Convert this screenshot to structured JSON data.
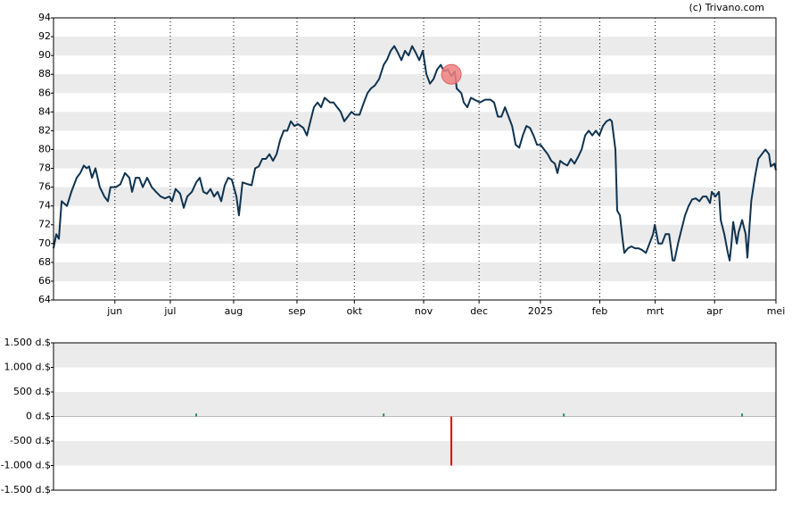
{
  "chart_data": [
    {
      "type": "line",
      "title": "(c) Trivano.com",
      "x": [
        0,
        1.4,
        2.7,
        4.1,
        6.8,
        9.0,
        11.7,
        13.5,
        15.3,
        16.7,
        18.0,
        19.4,
        21.2,
        23.4,
        25.7,
        27.5,
        28.8,
        31.5,
        33.8,
        36.1,
        38.3,
        39.7,
        41.5,
        43.3,
        45.1,
        47.3,
        49.6,
        51.8,
        54.1,
        56.3,
        58.6,
        59.9,
        61.7,
        64.0,
        65.8,
        67.6,
        69.9,
        72.1,
        73.9,
        75.7,
        77.5,
        79.3,
        81.1,
        82.9,
        84.7,
        86.5,
        88.3,
        90.1,
        92.4,
        93.7,
        95.5,
        98.3,
        100.1,
        101.9,
        103.7,
        105.5,
        107.3,
        109.1,
        110.9,
        112.7,
        114.5,
        116.3,
        118.1,
        119.9,
        121.7,
        123.5,
        126.2,
        128.0,
        129.8,
        131.6,
        133.4,
        135.2,
        137.0,
        139.7,
        141.5,
        143.3,
        145.1,
        146.9,
        148.7,
        150.5,
        152.3,
        154.6,
        156.8,
        158.6,
        160.4,
        162.3,
        164.5,
        166.8,
        168.6,
        170.4,
        172.2,
        174.0,
        175.8,
        177.6,
        179.4,
        181.2,
        183.0,
        184.8,
        186.6,
        188.4,
        190.2,
        192.0,
        193.8,
        195.6,
        197.4,
        199.2,
        201.0,
        202.8,
        203.7,
        206.0,
        207.3,
        209.1,
        210.9,
        212.7,
        215.4,
        218.1,
        220.8,
        222.6,
        224.5,
        226.3,
        228.1,
        229.9,
        231.7,
        233.5,
        235.3,
        237.1,
        238.9,
        240.7,
        242.5,
        244.3,
        246.1,
        247.9,
        249.7,
        251.5,
        253.3,
        254.6,
        256.0,
        257.8,
        259.6,
        261.4,
        263.2,
        265.0,
        266.8,
        268.6,
        270.4,
        272.2,
        274.0,
        275.8,
        277.6,
        279.4,
        281.2,
        282.1,
        283.9,
        284.8,
        286.2,
        287.5,
        288.4,
        290.2,
        292.0,
        293.8,
        295.6,
        297.5,
        299.3,
        301.1,
        302.9,
        303.8,
        305.6,
        307.4,
        309.2,
        311.0,
        312.8,
        313.7,
        315.5,
        317.3,
        319.1,
        320.9,
        322.7,
        324.5,
        326.3,
        328.1,
        329.9,
        331.7,
        332.6,
        334.4,
        336.2,
        337.1,
        338.9,
        340.7,
        341.6,
        342.5,
        343.4,
        345.2,
        346.1,
        347.9,
        349.7,
        350.6,
        352.5,
        354.3,
        356.1,
        357.9,
        359.7,
        361.5,
        362.4,
        364.2,
        365
      ],
      "series": [
        {
          "color": "#0f3350",
          "values": [
            69.5,
            71,
            70.5,
            74.5,
            74,
            75.5,
            77,
            77.5,
            78.3,
            78,
            78.2,
            77,
            78,
            76,
            75,
            74.5,
            76,
            76,
            76.3,
            77.5,
            77,
            75.5,
            77,
            77,
            76,
            77,
            76,
            75.5,
            75,
            74.8,
            75,
            74.5,
            75.8,
            75.3,
            73.8,
            75,
            75.5,
            76.5,
            77,
            75.5,
            75.3,
            75.8,
            75,
            75.5,
            74.5,
            76.2,
            77,
            76.8,
            75,
            73,
            76.5,
            76.3,
            76.2,
            78,
            78.2,
            79,
            79,
            79.5,
            78.8,
            79.5,
            81,
            82,
            82,
            83,
            82.5,
            82.7,
            82.3,
            81.5,
            83,
            84.5,
            85,
            84.5,
            85.5,
            85,
            85,
            84.5,
            84,
            83,
            83.5,
            84,
            83.7,
            83.7,
            85,
            86,
            86.5,
            86.8,
            87.5,
            89,
            89.6,
            90.5,
            91,
            90.3,
            89.5,
            90.5,
            90,
            91,
            90.3,
            89.5,
            90.5,
            88,
            87,
            87.5,
            88.5,
            89,
            88.3,
            88.5,
            87.8,
            88.3,
            86.5,
            86,
            85,
            84.5,
            85.5,
            85.3,
            85,
            85.3,
            85.3,
            85,
            83.5,
            83.5,
            84.5,
            83.5,
            82.5,
            80.5,
            80.2,
            81.5,
            82.5,
            82.3,
            81.5,
            80.5,
            80.5,
            80,
            79.5,
            78.8,
            78.5,
            77.5,
            78.8,
            78.5,
            78.3,
            79,
            78.5,
            79.2,
            80,
            81.5,
            82,
            81.5,
            82,
            81.5,
            82.5,
            83,
            83.2,
            83,
            80,
            73.5,
            73,
            70.5,
            69,
            69.5,
            69.7,
            69.5,
            69.5,
            69.3,
            69,
            70,
            71,
            72,
            70,
            70,
            71,
            71,
            68.2,
            68.2,
            70,
            71.5,
            73,
            74,
            74.7,
            74.8,
            74.5,
            75,
            75,
            74.3,
            75.5,
            75,
            75.5,
            72.5,
            71,
            69,
            68.2,
            70,
            72.3,
            70,
            71.2,
            72.5,
            71,
            68.5,
            74.5,
            77,
            79,
            79.5,
            80,
            79.5,
            78.2,
            78.5,
            77.8
          ]
        }
      ],
      "highlight": {
        "x": 201.0,
        "value": 88,
        "color": "#f08080"
      },
      "xlim": [
        0,
        365
      ],
      "xticks": [
        {
          "value": 31,
          "label": "jun"
        },
        {
          "value": 59,
          "label": "jul"
        },
        {
          "value": 91,
          "label": "aug"
        },
        {
          "value": 123,
          "label": "sep"
        },
        {
          "value": 152,
          "label": "okt"
        },
        {
          "value": 187,
          "label": "nov"
        },
        {
          "value": 215,
          "label": "dec"
        },
        {
          "value": 246,
          "label": "2025"
        },
        {
          "value": 276,
          "label": "feb"
        },
        {
          "value": 304,
          "label": "mrt"
        },
        {
          "value": 334,
          "label": "apr"
        },
        {
          "value": 365,
          "label": "mei"
        }
      ],
      "ylim": [
        64,
        94
      ],
      "yticks": [
        64,
        66,
        68,
        70,
        72,
        74,
        76,
        78,
        80,
        82,
        84,
        86,
        88,
        90,
        92,
        94
      ],
      "grid": true
    },
    {
      "type": "bar",
      "x": [
        72.1,
        166.8,
        201.0,
        257.8,
        347.9
      ],
      "values": [
        60,
        60,
        -1000,
        60,
        60
      ],
      "colors": [
        "#2e8b57",
        "#2e8b57",
        "#e00000",
        "#2e8b57",
        "#2e8b57"
      ],
      "xlim": [
        0,
        365
      ],
      "ylim": [
        -1500,
        1500
      ],
      "yticks": [
        {
          "value": -1500,
          "label": "-1.500 d.$"
        },
        {
          "value": -1000,
          "label": "-1.000 d.$"
        },
        {
          "value": -500,
          "label": "-500 d.$"
        },
        {
          "value": 0,
          "label": "0 d.$"
        },
        {
          "value": 500,
          "label": "500 d.$"
        },
        {
          "value": 1000,
          "label": "1.000 d.$"
        },
        {
          "value": 1500,
          "label": "1.500 d.$"
        }
      ],
      "grid": true
    }
  ]
}
